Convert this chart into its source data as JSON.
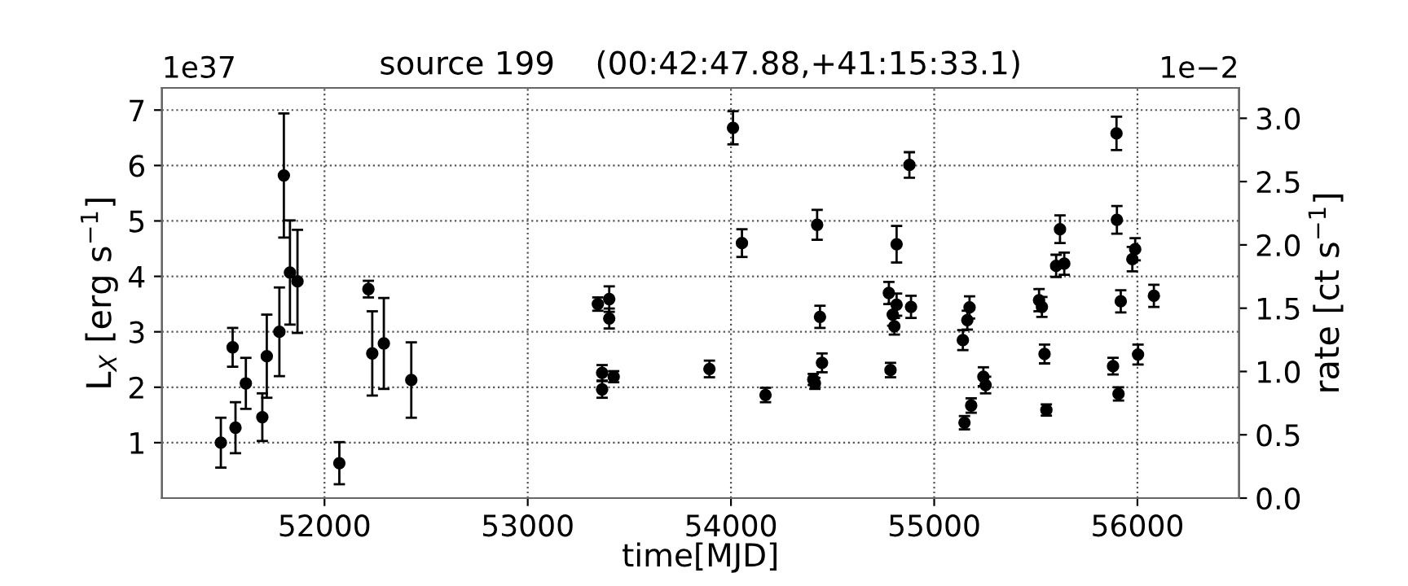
{
  "chart_data": {
    "type": "scatter",
    "title": "source 199    (00:42:47.88,+41:15:33.1)",
    "xlabel": "time[MJD]",
    "ylabel": "L$_{X}$ [erg s$^{−1}$]",
    "y2label": "rate [ct s$^{−1}$]",
    "annotations": [
      "1e37",
      "1e−2"
    ],
    "x": [
      51490,
      51548,
      51562,
      51613,
      51694,
      51716,
      51778,
      51800,
      51830,
      51867,
      52073,
      52216,
      52235,
      52292,
      52427,
      53345,
      53401,
      53401,
      53366,
      53366,
      53423,
      53894,
      54010,
      54054,
      54170,
      54424,
      54438,
      54448,
      54405,
      54413,
      54777,
      54796,
      54804,
      54815,
      54815,
      54785,
      54878,
      54886,
      55141,
      55163,
      55174,
      55149,
      55182,
      55242,
      55253,
      55516,
      55530,
      55543,
      55552,
      55600,
      55640,
      55619,
      55880,
      55897,
      55899,
      55907,
      55918,
      55975,
      55989,
      56003,
      56081
    ],
    "values": [
      1.0,
      2.72,
      1.27,
      2.07,
      1.46,
      2.56,
      3.0,
      5.82,
      4.07,
      3.91,
      0.63,
      3.77,
      2.61,
      2.79,
      2.13,
      3.5,
      3.59,
      3.24,
      2.26,
      1.96,
      2.19,
      2.33,
      6.68,
      4.6,
      1.86,
      4.93,
      3.27,
      2.44,
      2.14,
      2.07,
      3.7,
      3.31,
      3.1,
      3.49,
      4.58,
      2.31,
      6.01,
      3.45,
      2.85,
      3.21,
      3.44,
      1.36,
      1.67,
      2.19,
      2.04,
      3.57,
      3.45,
      2.6,
      1.59,
      4.19,
      4.23,
      4.85,
      2.38,
      6.58,
      5.02,
      1.88,
      3.55,
      4.31,
      4.49,
      2.59,
      3.65
    ],
    "errors": [
      0.45,
      0.35,
      0.46,
      0.46,
      0.43,
      0.75,
      0.8,
      1.12,
      0.94,
      0.93,
      0.38,
      0.15,
      0.76,
      0.82,
      0.68,
      0.12,
      0.23,
      0.18,
      0.14,
      0.15,
      0.1,
      0.15,
      0.3,
      0.25,
      0.13,
      0.27,
      0.2,
      0.17,
      0.1,
      0.1,
      0.2,
      0.2,
      0.15,
      0.2,
      0.33,
      0.13,
      0.23,
      0.2,
      0.18,
      0.17,
      0.2,
      0.12,
      0.13,
      0.17,
      0.15,
      0.2,
      0.18,
      0.17,
      0.1,
      0.2,
      0.2,
      0.25,
      0.15,
      0.3,
      0.25,
      0.12,
      0.2,
      0.22,
      0.2,
      0.18,
      0.2
    ],
    "color": "#000000",
    "marker": "circle",
    "grid": true,
    "xlim": [
      51200,
      56500
    ],
    "xticks": [
      52000,
      53000,
      54000,
      55000,
      56000
    ],
    "ylim": [
      0,
      7.4
    ],
    "yticks": [
      1,
      2,
      3,
      4,
      5,
      6,
      7
    ],
    "y2lim": [
      0,
      3.24
    ],
    "y2ticks": [
      {
        "value": 0,
        "label": "0.0"
      },
      {
        "value": 0.5,
        "label": "0.5"
      },
      {
        "value": 1,
        "label": "1.0"
      },
      {
        "value": 1.5,
        "label": "1.5"
      },
      {
        "value": 2,
        "label": "2.0"
      },
      {
        "value": 2.5,
        "label": "2.5"
      },
      {
        "value": 3,
        "label": "3.0"
      }
    ]
  }
}
